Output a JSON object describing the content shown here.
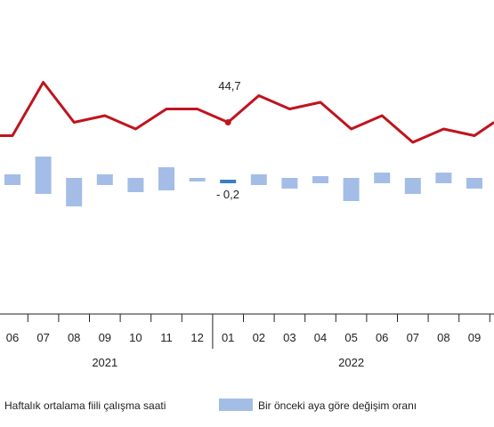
{
  "chart_data": {
    "type": "line+bar",
    "categories": [
      "06",
      "07",
      "08",
      "09",
      "10",
      "11",
      "12",
      "01",
      "02",
      "03",
      "04",
      "05",
      "06",
      "07",
      "08",
      "09"
    ],
    "year_groups": [
      {
        "label": "2021",
        "from": 0,
        "to": 6
      },
      {
        "label": "2022",
        "from": 7,
        "to": 15
      }
    ],
    "line_series": {
      "name": "Haftalık ortalama fiili çalışma saati",
      "color": "#c0141e",
      "values": [
        44.5,
        45.3,
        44.7,
        44.8,
        44.6,
        44.9,
        44.9,
        44.7,
        45.1,
        44.9,
        45.0,
        44.6,
        44.8,
        44.4,
        44.6,
        44.5
      ],
      "ylim": [
        44.0,
        45.6
      ],
      "edge_start": 44.5,
      "edge_end": 44.7
    },
    "bar_series": {
      "name": "Bir önceki aya göre değişim oranı",
      "color": "#a4bde6",
      "highlight_color": "#3a7fc1",
      "highlight_index": 7,
      "ranges": [
        [
          -0.3,
          0.3
        ],
        [
          -0.8,
          1.3
        ],
        [
          -1.5,
          0.1
        ],
        [
          -0.3,
          0.3
        ],
        [
          -0.7,
          0.1
        ],
        [
          -0.6,
          0.7
        ],
        [
          -0.1,
          0.1
        ],
        [
          -0.2,
          0.0
        ],
        [
          -0.3,
          0.3
        ],
        [
          -0.5,
          0.1
        ],
        [
          -0.2,
          0.2
        ],
        [
          -1.2,
          0.1
        ],
        [
          -0.2,
          0.4
        ],
        [
          -0.8,
          0.1
        ],
        [
          -0.2,
          0.4
        ],
        [
          -0.5,
          0.1
        ]
      ],
      "ylim": [
        -4.4,
        4.4
      ]
    },
    "labels": {
      "peak_label": "44,7",
      "change_label": "- 0,2"
    },
    "legend": {
      "line_label": "Haftalık ortalama fiili çalışma saati",
      "bar_label": "Bir önceki aya göre değişim oranı",
      "position": "bottom"
    }
  }
}
